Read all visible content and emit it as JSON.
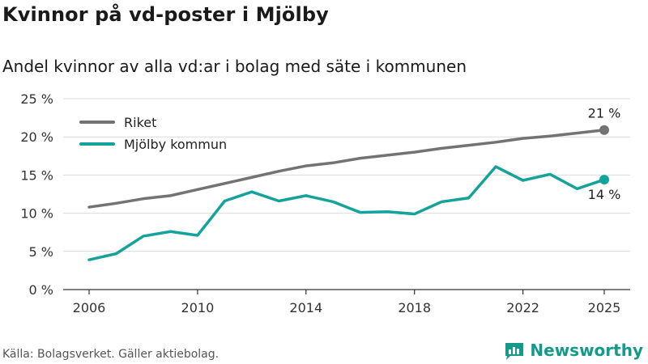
{
  "title": "Kvinnor på vd-poster i Mjölby",
  "subtitle": "Andel kvinnor av alla vd:ar i bolag med säte i kommunen",
  "source": "Källa: Bolagsverket. Gäller aktiebolag.",
  "brand": "Newsworthy",
  "colors": {
    "riket": "#737373",
    "mjolby": "#14a39b",
    "grid": "#dcdcdc",
    "axis": "#333333",
    "brand": "#139a8b"
  },
  "chart_data": {
    "type": "line",
    "x": [
      2006,
      2007,
      2008,
      2009,
      2010,
      2011,
      2012,
      2013,
      2014,
      2015,
      2016,
      2017,
      2018,
      2019,
      2020,
      2021,
      2022,
      2023,
      2024,
      2025
    ],
    "series": [
      {
        "name": "Riket",
        "end_label": "21 %",
        "values": [
          10.8,
          11.3,
          11.9,
          12.3,
          13.1,
          13.9,
          14.7,
          15.5,
          16.2,
          16.6,
          17.2,
          17.6,
          18.0,
          18.5,
          18.9,
          19.3,
          19.8,
          20.1,
          20.5,
          20.9
        ]
      },
      {
        "name": "Mjölby kommun",
        "end_label": "14 %",
        "values": [
          3.9,
          4.7,
          7.0,
          7.6,
          7.1,
          11.6,
          12.8,
          11.6,
          12.3,
          11.5,
          10.1,
          10.2,
          9.9,
          11.5,
          12.0,
          16.1,
          14.3,
          15.1,
          13.2,
          14.4
        ]
      }
    ],
    "xticks": [
      "2006",
      "2010",
      "2014",
      "2018",
      "2022",
      "2025"
    ],
    "yticks": [
      "0 %",
      "5 %",
      "10 %",
      "15 %",
      "20 %",
      "25 %"
    ],
    "ylim": [
      0,
      25
    ],
    "legend_position": "top-left"
  }
}
